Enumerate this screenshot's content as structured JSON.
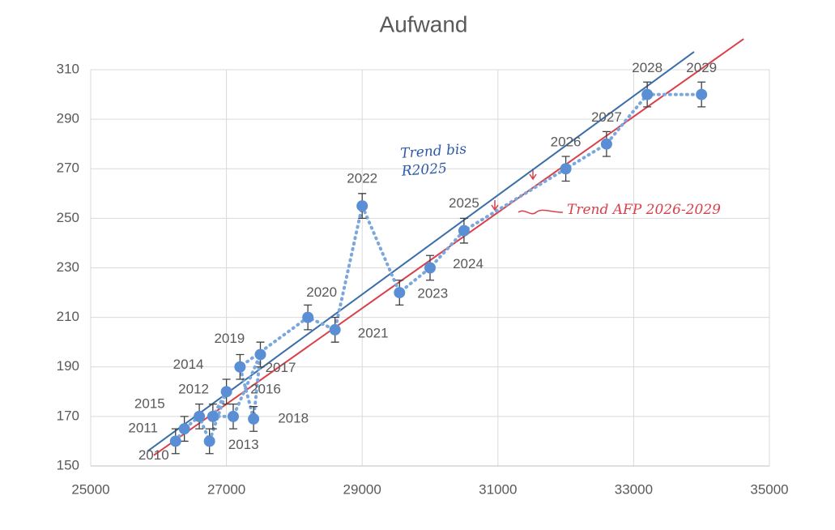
{
  "chart_data": {
    "type": "scatter",
    "title": "Aufwand",
    "x": [
      26250,
      26380,
      26600,
      26750,
      27000,
      26800,
      27100,
      27500,
      27400,
      27200,
      28200,
      28600,
      29000,
      29550,
      30000,
      30500,
      32000,
      32600,
      33200,
      34000
    ],
    "values": [
      160,
      165,
      170,
      160,
      180,
      170,
      170,
      195,
      169,
      190,
      210,
      205,
      255,
      220,
      230,
      245,
      270,
      280,
      300,
      300
    ],
    "errors": [
      5,
      5,
      5,
      5,
      5,
      5,
      5,
      5,
      5,
      5,
      5,
      5,
      5,
      5,
      5,
      5,
      5,
      5,
      5,
      5
    ],
    "point_labels": [
      "2010",
      "2011",
      "2012",
      "2013",
      "2014",
      "2015",
      "2016",
      "2017",
      "2018",
      "2019",
      "2020",
      "2021",
      "2022",
      "2023",
      "2024",
      "2025",
      "2026",
      "2027",
      "2028",
      "2029"
    ],
    "color": "#5b8fd5",
    "trendlines": [
      {
        "name": "Trend bis R2025",
        "color": "#3a6ea8",
        "x": [
          25835,
          33890
        ],
        "values": [
          155.9,
          317.2
        ]
      },
      {
        "name": "Trend AFP 2026-2029",
        "color": "#d9404a",
        "x": [
          25930,
          34620
        ],
        "values": [
          154.3,
          322.4
        ]
      }
    ],
    "xlim": [
      25000,
      35000
    ],
    "xticks": [
      25000,
      27000,
      29000,
      31000,
      33000,
      35000
    ],
    "ylim": [
      150,
      310
    ],
    "yticks": [
      150,
      170,
      190,
      210,
      230,
      250,
      270,
      290,
      310
    ],
    "grid": true
  }
}
